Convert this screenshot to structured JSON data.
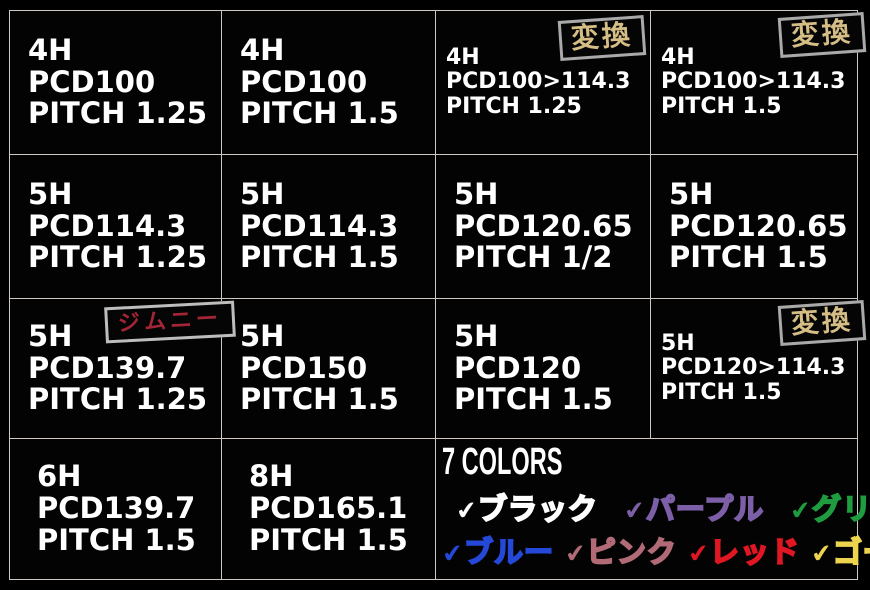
{
  "page": {
    "background": "#000000",
    "grid_line_color": "#cfc7c2",
    "text_color": "#ffffff",
    "badge_text_color": "#d5be85",
    "badge_border_color": "#a9a9a9",
    "jimny_text_color": "#a32536"
  },
  "badges": {
    "conversion": "変換",
    "jimny": "ジムニー"
  },
  "cells": [
    {
      "lines": [
        "4H",
        "PCD100",
        "PITCH 1.25"
      ]
    },
    {
      "lines": [
        "4H",
        "PCD100",
        "PITCH 1.5"
      ]
    },
    {
      "lines": [
        "4H",
        "PCD100>114.3",
        "PITCH 1.25"
      ],
      "badge": "変換"
    },
    {
      "lines": [
        "4H",
        "PCD100>114.3",
        "PITCH 1.5"
      ],
      "badge": "変換"
    },
    {
      "lines": [
        "5H",
        "PCD114.3",
        "PITCH 1.25"
      ]
    },
    {
      "lines": [
        "5H",
        "PCD114.3",
        "PITCH 1.5"
      ]
    },
    {
      "lines": [
        "5H",
        "PCD120.65",
        "PITCH 1/2"
      ]
    },
    {
      "lines": [
        "5H",
        "PCD120.65",
        "PITCH 1.5"
      ]
    },
    {
      "lines": [
        "5H",
        "PCD139.7",
        "PITCH 1.25"
      ],
      "badge": "ジムニー"
    },
    {
      "lines": [
        "5H",
        "PCD150",
        "PITCH 1.5"
      ]
    },
    {
      "lines": [
        "5H",
        "PCD120",
        "PITCH 1.5"
      ]
    },
    {
      "lines": [
        "5H",
        "PCD120>114.3",
        "PITCH 1.5"
      ],
      "badge": "変換"
    },
    {
      "lines": [
        "6H",
        "PCD139.7",
        "PITCH 1.5"
      ]
    },
    {
      "lines": [
        "8H",
        "PCD165.1",
        "PITCH 1.5"
      ]
    }
  ],
  "colors_panel": {
    "title": "7 COLORS",
    "check_glyph": "✔",
    "items": [
      {
        "label": "ブラック",
        "color": "#ffffff"
      },
      {
        "label": "パープル",
        "color": "#7d5fa8"
      },
      {
        "label": "グリーン",
        "color": "#1f9c3f"
      },
      {
        "label": "ブルー",
        "color": "#2448d8"
      },
      {
        "label": "ピンク",
        "color": "#b16b77"
      },
      {
        "label": "レッド",
        "color": "#e01622"
      },
      {
        "label": "ゴールド",
        "color": "#ecd44f"
      }
    ]
  }
}
